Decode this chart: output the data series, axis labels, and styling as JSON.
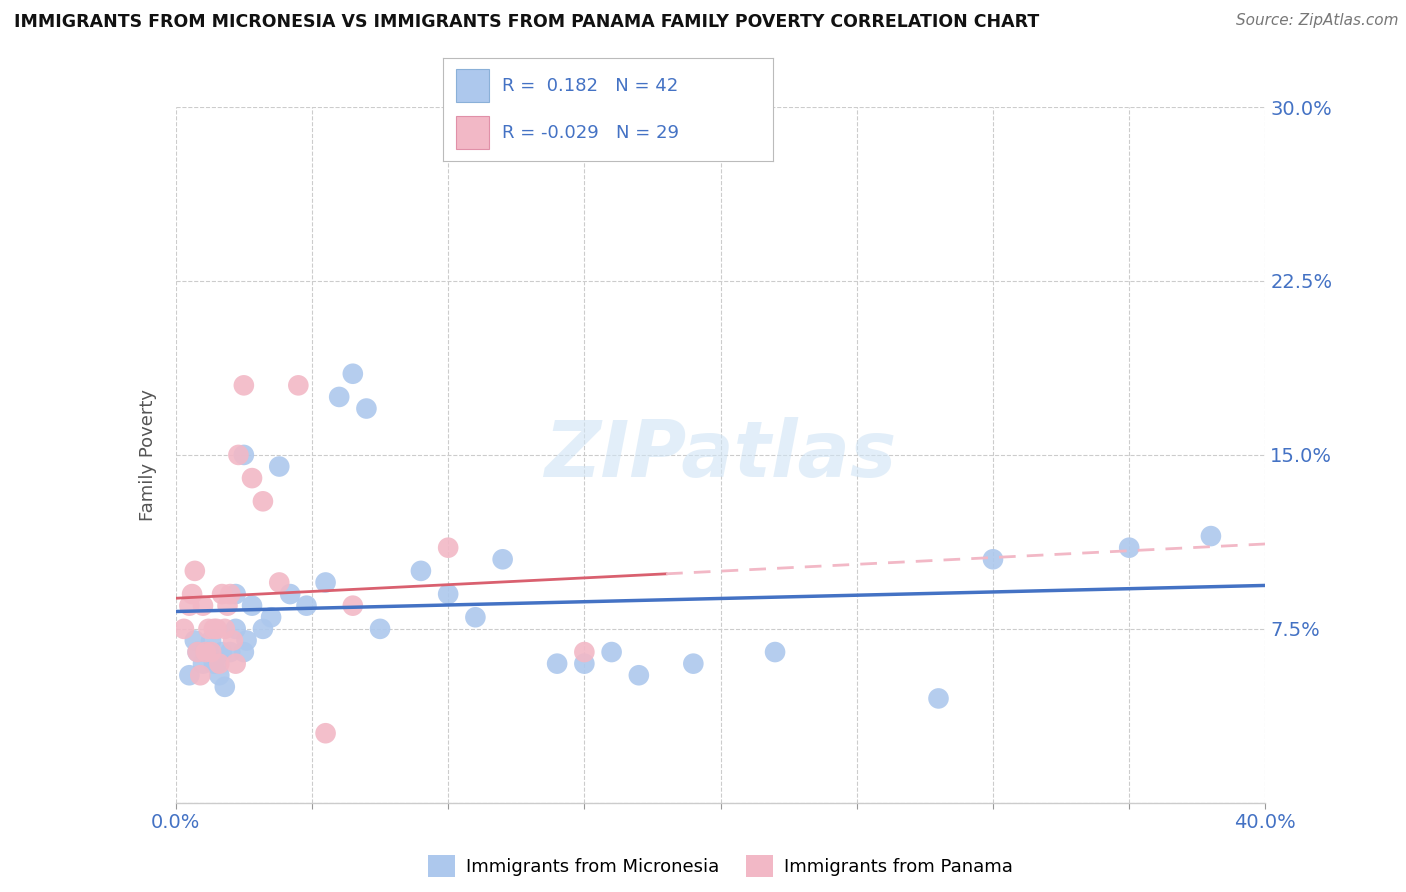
{
  "title": "IMMIGRANTS FROM MICRONESIA VS IMMIGRANTS FROM PANAMA FAMILY POVERTY CORRELATION CHART",
  "source": "Source: ZipAtlas.com",
  "ylabel": "Family Poverty",
  "xmin": 0.0,
  "xmax": 0.4,
  "ymin": 0.0,
  "ymax": 0.3,
  "legend_R1": "0.182",
  "legend_N1": "42",
  "legend_R2": "-0.029",
  "legend_N2": "29",
  "blue_color": "#adc8ed",
  "pink_color": "#f2b8c6",
  "line_blue": "#4472c4",
  "line_pink_solid": "#d9606f",
  "line_pink_dash": "#f2b8c6",
  "series1_label": "Immigrants from Micronesia",
  "series2_label": "Immigrants from Panama",
  "micronesia_x": [
    0.005,
    0.007,
    0.008,
    0.01,
    0.012,
    0.013,
    0.014,
    0.015,
    0.016,
    0.017,
    0.018,
    0.02,
    0.022,
    0.022,
    0.025,
    0.025,
    0.026,
    0.028,
    0.032,
    0.035,
    0.038,
    0.042,
    0.048,
    0.055,
    0.06,
    0.065,
    0.07,
    0.075,
    0.09,
    0.1,
    0.11,
    0.12,
    0.14,
    0.15,
    0.16,
    0.17,
    0.19,
    0.22,
    0.28,
    0.3,
    0.35,
    0.38
  ],
  "micronesia_y": [
    0.055,
    0.07,
    0.065,
    0.06,
    0.065,
    0.07,
    0.06,
    0.06,
    0.055,
    0.065,
    0.05,
    0.065,
    0.075,
    0.09,
    0.065,
    0.15,
    0.07,
    0.085,
    0.075,
    0.08,
    0.145,
    0.09,
    0.085,
    0.095,
    0.175,
    0.185,
    0.17,
    0.075,
    0.1,
    0.09,
    0.08,
    0.105,
    0.06,
    0.06,
    0.065,
    0.055,
    0.06,
    0.065,
    0.045,
    0.105,
    0.11,
    0.115
  ],
  "panama_x": [
    0.003,
    0.005,
    0.006,
    0.007,
    0.008,
    0.009,
    0.01,
    0.011,
    0.012,
    0.013,
    0.014,
    0.015,
    0.016,
    0.017,
    0.018,
    0.019,
    0.02,
    0.021,
    0.022,
    0.023,
    0.025,
    0.028,
    0.032,
    0.038,
    0.045,
    0.055,
    0.065,
    0.1,
    0.15
  ],
  "panama_y": [
    0.075,
    0.085,
    0.09,
    0.1,
    0.065,
    0.055,
    0.085,
    0.065,
    0.075,
    0.065,
    0.075,
    0.075,
    0.06,
    0.09,
    0.075,
    0.085,
    0.09,
    0.07,
    0.06,
    0.15,
    0.18,
    0.14,
    0.13,
    0.095,
    0.18,
    0.03,
    0.085,
    0.11,
    0.065
  ]
}
